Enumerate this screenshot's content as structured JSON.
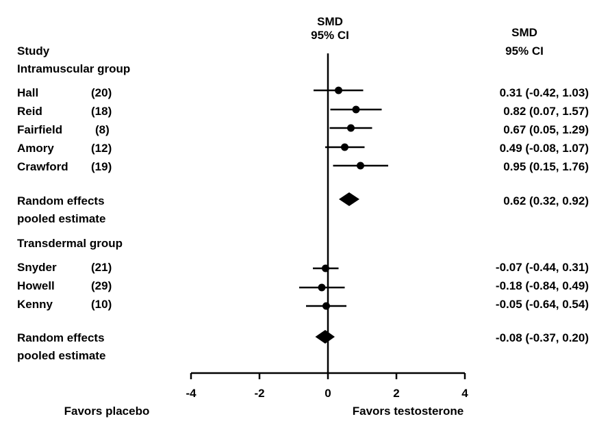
{
  "chart_data": {
    "type": "forest",
    "header": {
      "study": "Study",
      "center_line1": "SMD",
      "center_line2": "95% CI",
      "right_line1": "SMD",
      "right_line2": "95% CI"
    },
    "groups": [
      {
        "label": "Intramuscular group",
        "studies": [
          {
            "name": "Hall",
            "n": "(20)",
            "smd": 0.31,
            "lo": -0.42,
            "hi": 1.03,
            "ci_text": "0.31 (-0.42, 1.03)"
          },
          {
            "name": "Reid",
            "n": "(18)",
            "smd": 0.82,
            "lo": 0.07,
            "hi": 1.57,
            "ci_text": "0.82 (0.07, 1.57)"
          },
          {
            "name": "Fairfield",
            "n": "(8)",
            "smd": 0.67,
            "lo": 0.05,
            "hi": 1.29,
            "ci_text": "0.67 (0.05, 1.29)"
          },
          {
            "name": "Amory",
            "n": "(12)",
            "smd": 0.49,
            "lo": -0.08,
            "hi": 1.07,
            "ci_text": "0.49 (-0.08, 1.07)"
          },
          {
            "name": "Crawford",
            "n": "(19)",
            "smd": 0.95,
            "lo": 0.15,
            "hi": 1.76,
            "ci_text": "0.95 (0.15, 1.76)"
          }
        ],
        "pooled": {
          "label_line1": "Random effects",
          "label_line2": "pooled estimate",
          "smd": 0.62,
          "lo": 0.32,
          "hi": 0.92,
          "ci_text": "0.62 (0.32, 0.92)"
        }
      },
      {
        "label": "Transdermal group",
        "studies": [
          {
            "name": "Snyder",
            "n": "(21)",
            "smd": -0.07,
            "lo": -0.44,
            "hi": 0.31,
            "ci_text": "-0.07 (-0.44, 0.31)"
          },
          {
            "name": "Howell",
            "n": "(29)",
            "smd": -0.18,
            "lo": -0.84,
            "hi": 0.49,
            "ci_text": "-0.18 (-0.84, 0.49)"
          },
          {
            "name": "Kenny",
            "n": "(10)",
            "smd": -0.05,
            "lo": -0.64,
            "hi": 0.54,
            "ci_text": "-0.05 (-0.64, 0.54)"
          }
        ],
        "pooled": {
          "label_line1": "Random effects",
          "label_line2": "pooled estimate",
          "smd": -0.08,
          "lo": -0.37,
          "hi": 0.2,
          "ci_text": "-0.08 (-0.37, 0.20)"
        }
      }
    ],
    "x_axis": {
      "range": [
        -4,
        4
      ],
      "ticks": [
        -4,
        -2,
        0,
        2,
        4
      ],
      "tick_labels": [
        "-4",
        "-2",
        "0",
        "2",
        "4"
      ],
      "left_label": "Favors placebo",
      "right_label": "Favors testosterone"
    }
  }
}
